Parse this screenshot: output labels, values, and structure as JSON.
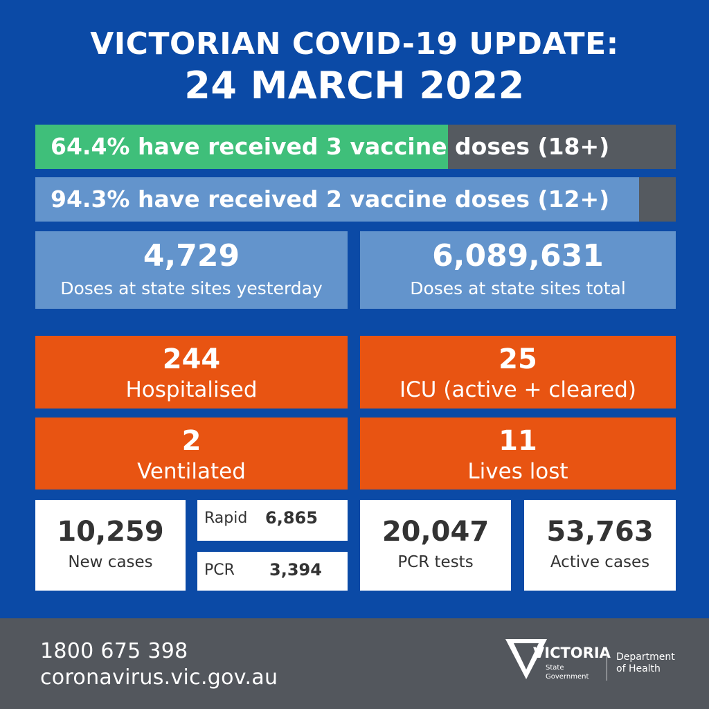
{
  "header": {
    "line1": "VICTORIAN COVID-19 UPDATE:",
    "line2": "24 MARCH 2022"
  },
  "vaccination": [
    {
      "label": "64.4% have received 3 vaccine doses (18+)",
      "percent": 64.4,
      "color": "#3fbf7a"
    },
    {
      "label": "94.3% have received 2 vaccine doses (12+)",
      "percent": 94.3,
      "color": "#6394cc"
    }
  ],
  "doses": [
    {
      "value": "4,729",
      "label": "Doses at state sites yesterday"
    },
    {
      "value": "6,089,631",
      "label": "Doses at state sites total"
    }
  ],
  "hospital": [
    {
      "value": "244",
      "label": "Hospitalised"
    },
    {
      "value": "25",
      "label": "ICU (active + cleared)"
    },
    {
      "value": "2",
      "label": "Ventilated"
    },
    {
      "value": "11",
      "label": "Lives lost"
    }
  ],
  "cases": {
    "new": {
      "value": "10,259",
      "label": "New cases"
    },
    "rapid": {
      "label": "Rapid",
      "value": "6,865"
    },
    "pcr": {
      "label": "PCR",
      "value": "3,394"
    },
    "tests": {
      "value": "20,047",
      "label": "PCR tests"
    },
    "active": {
      "value": "53,763",
      "label": "Active cases"
    }
  },
  "footer": {
    "phone": "1800 675 398",
    "website": "coronavirus.vic.gov.au",
    "logo_name": "VICTORIA",
    "logo_sub1": "State",
    "logo_sub2": "Government",
    "dept1": "Department",
    "dept2": "of Health"
  },
  "colors": {
    "background": "#0b4aa6",
    "orange": "#e85412",
    "light_blue": "#6394cc",
    "green": "#3fbf7a",
    "grey": "#555a60"
  }
}
